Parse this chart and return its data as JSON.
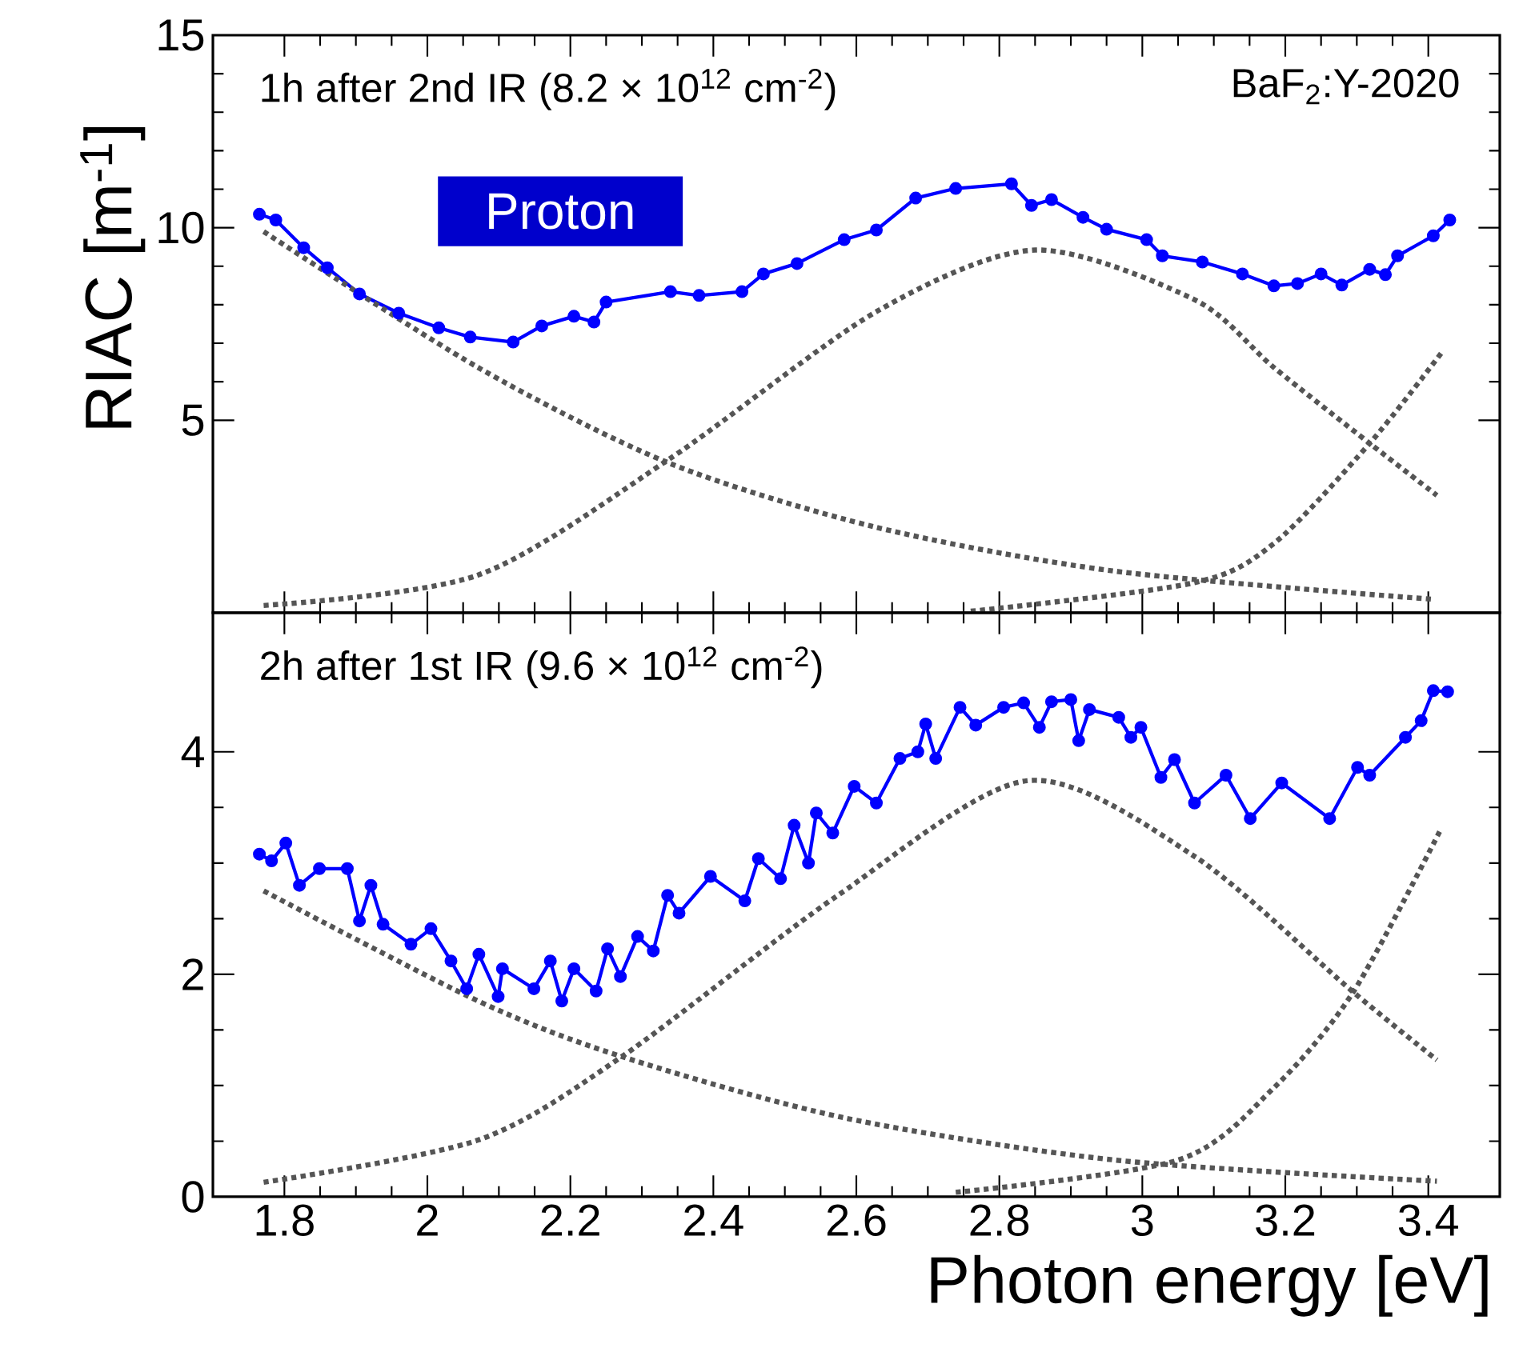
{
  "chart_data": [
    {
      "type": "line",
      "ylabel": "RIAC [m$^{-1}$]",
      "annotations": [
        "1h after 2nd IR (8.2 × 10$^{12}$ cm$^{-2}$)",
        "BaF$_{2}$:Y-2020",
        "Proton"
      ],
      "xlim": [
        1.7,
        3.5
      ],
      "xticks": [
        1.8,
        2,
        2.2,
        2.4,
        2.6,
        2.8,
        3,
        3.2,
        3.4
      ],
      "ylim": [
        0,
        15
      ],
      "yticks": [
        5,
        10,
        15
      ],
      "tick_labels": "y",
      "series": [
        {
          "color": "#0000ff",
          "marker": "circle",
          "line_style": "solid",
          "x": [
            1.765,
            1.788,
            1.827,
            1.86,
            1.905,
            1.96,
            2.016,
            2.06,
            2.12,
            2.16,
            2.205,
            2.233,
            2.25,
            2.34,
            2.38,
            2.44,
            2.47,
            2.517,
            2.583,
            2.628,
            2.683,
            2.739,
            2.817,
            2.845,
            2.873,
            2.917,
            2.95,
            3.006,
            3.028,
            3.084,
            3.14,
            3.184,
            3.217,
            3.25,
            3.279,
            3.318,
            3.34,
            3.357,
            3.407,
            3.43
          ],
          "values": [
            10.35,
            10.2,
            9.48,
            8.96,
            8.28,
            7.78,
            7.4,
            7.16,
            7.03,
            7.45,
            7.7,
            7.55,
            8.07,
            8.34,
            8.24,
            8.34,
            8.8,
            9.07,
            9.69,
            9.94,
            10.77,
            11.02,
            11.14,
            10.58,
            10.73,
            10.27,
            9.96,
            9.69,
            9.27,
            9.11,
            8.8,
            8.49,
            8.55,
            8.8,
            8.51,
            8.92,
            8.78,
            9.27,
            9.79,
            10.2
          ]
        },
        {
          "color": "#555555",
          "marker": "none",
          "line_style": "dotted",
          "x": [
            1.771,
            2.071,
            2.339,
            2.628,
            2.962,
            3.407
          ],
          "values": [
            9.9,
            6.37,
            3.88,
            2.22,
            1.08,
            0.35
          ]
        },
        {
          "color": "#555555",
          "marker": "none",
          "line_style": "dotted",
          "x": [
            1.771,
            2.071,
            2.339,
            2.628,
            2.85,
            3.073,
            3.184,
            3.318,
            3.412
          ],
          "values": [
            0.19,
            0.98,
            4.0,
            7.82,
            9.42,
            8.13,
            6.37,
            4.4,
            3.05
          ]
        },
        {
          "color": "#555555",
          "marker": "none",
          "line_style": "dotted",
          "x": [
            2.76,
            3.07,
            3.184,
            3.318,
            3.418
          ],
          "values": [
            0.04,
            0.77,
            1.8,
            4.4,
            6.74
          ]
        }
      ]
    },
    {
      "type": "line",
      "xlabel": "Photon energy [eV]",
      "annotations": [
        "2h after 1st IR (9.6 × 10$^{12}$ cm$^{-2}$)"
      ],
      "xlim": [
        1.7,
        3.5
      ],
      "xticks": [
        1.8,
        2,
        2.2,
        2.4,
        2.6,
        2.8,
        3,
        3.2,
        3.4
      ],
      "ylim": [
        0,
        5.25
      ],
      "yticks": [
        0,
        2,
        4
      ],
      "series": [
        {
          "color": "#0000ff",
          "marker": "circle",
          "line_style": "solid",
          "x": [
            1.765,
            1.782,
            1.802,
            1.821,
            1.849,
            1.888,
            1.905,
            1.921,
            1.938,
            1.977,
            2.005,
            2.033,
            2.055,
            2.072,
            2.099,
            2.105,
            2.149,
            2.172,
            2.188,
            2.205,
            2.236,
            2.252,
            2.27,
            2.294,
            2.316,
            2.336,
            2.352,
            2.396,
            2.444,
            2.463,
            2.494,
            2.513,
            2.533,
            2.544,
            2.567,
            2.597,
            2.628,
            2.661,
            2.686,
            2.697,
            2.711,
            2.745,
            2.767,
            2.806,
            2.834,
            2.856,
            2.873,
            2.9,
            2.911,
            2.926,
            2.967,
            2.984,
            2.998,
            3.026,
            3.045,
            3.073,
            3.117,
            3.151,
            3.195,
            3.262,
            3.301,
            3.318,
            3.368,
            3.39,
            3.407,
            3.427
          ],
          "values": [
            3.08,
            3.02,
            3.18,
            2.8,
            2.95,
            2.95,
            2.48,
            2.8,
            2.45,
            2.27,
            2.41,
            2.12,
            1.87,
            2.18,
            1.8,
            2.05,
            1.87,
            2.12,
            1.76,
            2.05,
            1.85,
            2.23,
            1.98,
            2.34,
            2.21,
            2.71,
            2.55,
            2.88,
            2.66,
            3.04,
            2.86,
            3.34,
            3.0,
            3.45,
            3.27,
            3.69,
            3.54,
            3.94,
            4.0,
            4.25,
            3.94,
            4.4,
            4.24,
            4.4,
            4.44,
            4.22,
            4.45,
            4.47,
            4.1,
            4.38,
            4.31,
            4.13,
            4.22,
            3.77,
            3.93,
            3.54,
            3.79,
            3.4,
            3.72,
            3.4,
            3.86,
            3.79,
            4.13,
            4.28,
            4.55,
            4.54
          ]
        },
        {
          "color": "#555555",
          "marker": "none",
          "line_style": "dotted",
          "x": [
            1.771,
            2.071,
            2.272,
            2.583,
            2.962,
            3.412
          ],
          "values": [
            2.75,
            1.76,
            1.26,
            0.71,
            0.33,
            0.14
          ]
        },
        {
          "color": "#555555",
          "marker": "none",
          "line_style": "dotted",
          "x": [
            1.771,
            2.071,
            2.272,
            2.572,
            2.839,
            3.073,
            3.295,
            3.412
          ],
          "values": [
            0.13,
            0.51,
            1.26,
            2.7,
            3.74,
            3.06,
            1.84,
            1.23
          ]
        },
        {
          "color": "#555555",
          "marker": "none",
          "line_style": "dotted",
          "x": [
            2.739,
            3.05,
            3.184,
            3.295,
            3.418
          ],
          "values": [
            0.04,
            0.33,
            0.98,
            1.84,
            3.31
          ]
        }
      ]
    }
  ]
}
